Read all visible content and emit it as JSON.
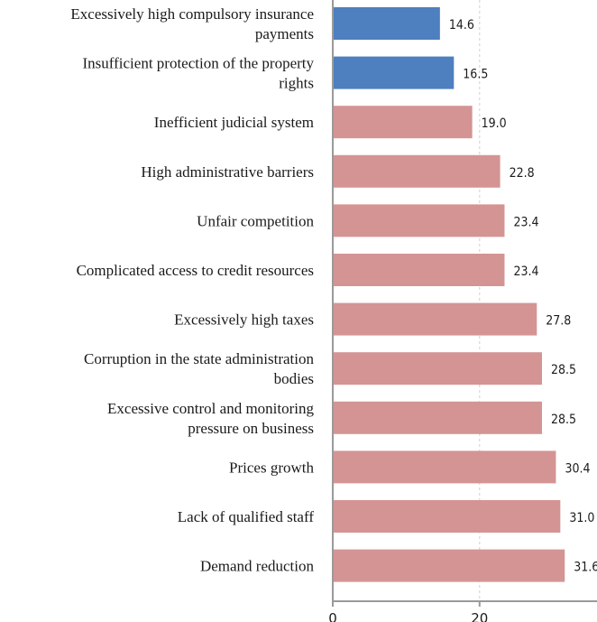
{
  "chart_data": {
    "type": "bar",
    "orientation": "horizontal",
    "categories": [
      [
        "Excessively high compulsory insurance",
        "payments"
      ],
      [
        "Insufficient protection of the property",
        "rights"
      ],
      [
        "Inefficient judicial system"
      ],
      [
        "High administrative barriers"
      ],
      [
        "Unfair competition"
      ],
      [
        "Complicated access to credit resources"
      ],
      [
        "Excessively high taxes"
      ],
      [
        "Corruption in the state administration",
        "bodies"
      ],
      [
        "Excessive control and monitoring",
        "pressure on business"
      ],
      [
        "Prices growth"
      ],
      [
        "Lack of qualified staff"
      ],
      [
        "Demand reduction"
      ]
    ],
    "values": [
      14.6,
      16.5,
      19.0,
      22.8,
      23.4,
      23.4,
      27.8,
      28.5,
      28.5,
      30.4,
      31.0,
      31.6
    ],
    "value_labels": [
      "14.6",
      "16.5",
      "19.0",
      "22.8",
      "23.4",
      "23.4",
      "27.8",
      "28.5",
      "28.5",
      "30.4",
      "31.0",
      "31.6"
    ],
    "bar_colors": [
      "#4e7fbf",
      "#4e7fbf",
      "#d49494",
      "#d49494",
      "#d49494",
      "#d49494",
      "#d49494",
      "#d49494",
      "#d49494",
      "#d49494",
      "#d49494",
      "#d49494"
    ],
    "x_ticks": [
      0,
      20
    ],
    "x_tick_labels": [
      "0",
      "20"
    ],
    "xlim": [
      0,
      37.5
    ],
    "grid": true,
    "title": "",
    "xlabel": "",
    "ylabel": ""
  }
}
